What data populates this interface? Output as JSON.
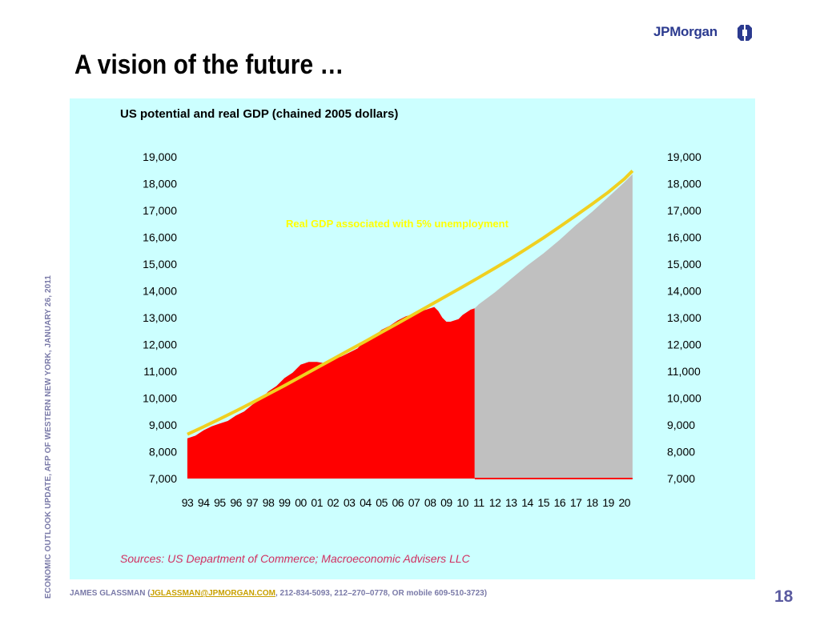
{
  "slide": {
    "logo_text": "JPMorgan",
    "title": "A vision of the future …",
    "side_text": "ECONOMIC OUTLOOK UPDATE, AFP OF WESTERN NEW YORK, JANUARY 26, 2011",
    "footer_name": "JAMES GLASSMAN (",
    "footer_email": "JGLASSMAN@JPMORGAN.COM",
    "footer_rest": ", 212-834-5093, 212–270–0778, OR mobile 609-510-3723)",
    "page_number": "18"
  },
  "colors": {
    "panel_bg": "#ccffff",
    "real_gdp_fill": "#ff0000",
    "forecast_fill": "#c0c0c0",
    "potential_line": "#f0d020",
    "annotation_text": "#ffff00",
    "source_text": "#d03060"
  },
  "chart_data": {
    "type": "area",
    "title": "US potential and real GDP (chained 2005 dollars)",
    "annotation": "Real GDP associated with 5% unemployment",
    "source": "Sources: US Department of Commerce; Macroeconomic Advisers LLC",
    "ylim": [
      7000,
      19000
    ],
    "y_ticks": [
      "7,000",
      "8,000",
      "9,000",
      "10,000",
      "11,000",
      "12,000",
      "13,000",
      "14,000",
      "15,000",
      "16,000",
      "17,000",
      "18,000",
      "19,000"
    ],
    "x_labels": [
      "93",
      "94",
      "95",
      "96",
      "97",
      "98",
      "99",
      "00",
      "01",
      "02",
      "03",
      "04",
      "05",
      "06",
      "07",
      "08",
      "09",
      "10",
      "11",
      "12",
      "13",
      "14",
      "15",
      "16",
      "17",
      "18",
      "19",
      "20"
    ],
    "x_range": [
      1993,
      2021
    ],
    "grid": false,
    "series": [
      {
        "type": "area",
        "x": [
          1993,
          1993.5,
          1994,
          1994.5,
          1995,
          1995.5,
          1996,
          1996.5,
          1997,
          1997.5,
          1998,
          1998.5,
          1999,
          1999.5,
          2000,
          2000.5,
          2001,
          2001.5,
          2002,
          2002.5,
          2003,
          2003.5,
          2004,
          2004.5,
          2005,
          2005.5,
          2006,
          2006.5,
          2007,
          2007.5,
          2008,
          2008.25,
          2008.5,
          2008.75,
          2009,
          2009.25,
          2009.5,
          2009.75,
          2010,
          2010.25,
          2010.5,
          2010.75
        ],
        "values": [
          8500,
          8600,
          8800,
          8950,
          9050,
          9150,
          9350,
          9500,
          9750,
          9950,
          10250,
          10450,
          10750,
          10950,
          11250,
          11350,
          11350,
          11300,
          11450,
          11550,
          11700,
          11850,
          12150,
          12300,
          12550,
          12700,
          12900,
          13050,
          13150,
          13250,
          13350,
          13400,
          13250,
          13000,
          12850,
          12850,
          12900,
          12950,
          13100,
          13200,
          13300,
          13350
        ]
      },
      {
        "type": "area",
        "x": [
          2010.75,
          2011,
          2012,
          2013,
          2014,
          2015,
          2016,
          2017,
          2018,
          2019,
          2020,
          2020.5
        ],
        "values": [
          13350,
          13500,
          13950,
          14450,
          14950,
          15400,
          15900,
          16450,
          16950,
          17500,
          18050,
          18350
        ]
      },
      {
        "type": "line",
        "x": [
          1993,
          1994,
          1995,
          1996,
          1997,
          1998,
          1999,
          2000,
          2001,
          2002,
          2003,
          2004,
          2005,
          2006,
          2007,
          2008,
          2009,
          2010,
          2011,
          2012,
          2013,
          2014,
          2015,
          2016,
          2017,
          2018,
          2019,
          2020,
          2020.5
        ],
        "values": [
          8650,
          8930,
          9220,
          9520,
          9830,
          10150,
          10470,
          10800,
          11130,
          11460,
          11790,
          12120,
          12460,
          12790,
          13130,
          13470,
          13810,
          14150,
          14500,
          14850,
          15210,
          15590,
          15980,
          16390,
          16810,
          17240,
          17680,
          18180,
          18480
        ]
      }
    ]
  }
}
